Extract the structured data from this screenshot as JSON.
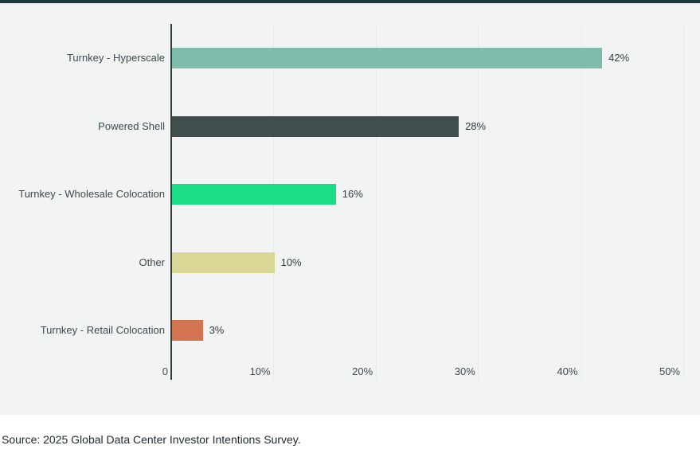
{
  "page": {
    "accent_bar_color": "#1c3a3d",
    "chart_background": "#f2f4f3",
    "lower_background": "#ffffff"
  },
  "chart_data": {
    "type": "bar",
    "orientation": "horizontal",
    "title": "",
    "xlabel": "",
    "ylabel": "",
    "categories": [
      "Turnkey - Hyperscale",
      "Powered Shell",
      "Turnkey - Wholesale Colocation",
      "Other",
      "Turnkey - Retail Colocation"
    ],
    "values": [
      42,
      28,
      16,
      10,
      3
    ],
    "value_labels": [
      "42%",
      "28%",
      "16%",
      "10%",
      "3%"
    ],
    "bar_colors": [
      "#80bcab",
      "#414e4e",
      "#1bdd85",
      "#d8d795",
      "#d37450"
    ],
    "xlim": [
      0,
      50
    ],
    "x_ticks": [
      {
        "value": 0,
        "label": "0"
      },
      {
        "value": 10,
        "label": "10%"
      },
      {
        "value": 20,
        "label": "20%"
      },
      {
        "value": 30,
        "label": "30%"
      },
      {
        "value": 40,
        "label": "40%"
      },
      {
        "value": 50,
        "label": "50%"
      }
    ],
    "grid": "vertical, light, on",
    "legend": "none",
    "axis_color": "#2f3c3e",
    "gridline_color": "#e7eae8"
  },
  "footer": {
    "source_text": "Source: 2025 Global Data Center Investor Intentions Survey."
  }
}
